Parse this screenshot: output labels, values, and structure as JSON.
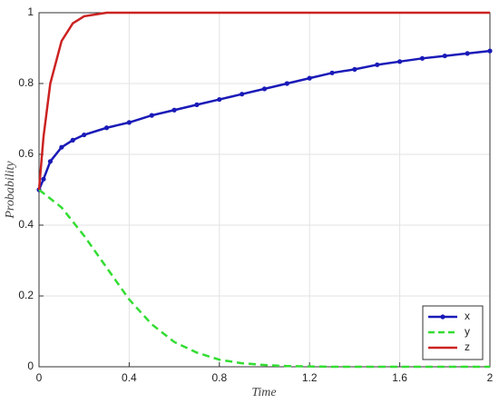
{
  "chart_data": {
    "type": "line",
    "xlabel": "Time",
    "ylabel": "Probability",
    "x": [
      0,
      0.02,
      0.05,
      0.1,
      0.15,
      0.2,
      0.3,
      0.4,
      0.5,
      0.6,
      0.7,
      0.8,
      0.9,
      1.0,
      1.1,
      1.2,
      1.3,
      1.4,
      1.5,
      1.6,
      1.7,
      1.8,
      1.9,
      2.0
    ],
    "series": [
      {
        "name": "x",
        "color": "#1a1ab8",
        "style": "solid",
        "marker": true,
        "values": [
          0.5,
          0.53,
          0.58,
          0.62,
          0.64,
          0.655,
          0.675,
          0.69,
          0.71,
          0.725,
          0.74,
          0.755,
          0.77,
          0.785,
          0.8,
          0.815,
          0.83,
          0.84,
          0.853,
          0.862,
          0.871,
          0.878,
          0.885,
          0.892
        ]
      },
      {
        "name": "y",
        "color": "#33dd33",
        "style": "dashed",
        "marker": false,
        "values": [
          0.5,
          0.49,
          0.475,
          0.45,
          0.41,
          0.37,
          0.28,
          0.19,
          0.12,
          0.07,
          0.04,
          0.02,
          0.01,
          0.005,
          0.002,
          0.001,
          0,
          0,
          0,
          0,
          0,
          0,
          0,
          0
        ]
      },
      {
        "name": "z",
        "color": "#cc2222",
        "style": "solid",
        "marker": false,
        "values": [
          0.5,
          0.65,
          0.8,
          0.92,
          0.97,
          0.99,
          1,
          1,
          1,
          1,
          1,
          1,
          1,
          1,
          1,
          1,
          1,
          1,
          1,
          1,
          1,
          1,
          1,
          1
        ]
      }
    ],
    "xlim": [
      0,
      2
    ],
    "ylim": [
      0,
      1
    ],
    "xticks": [
      0,
      0.4,
      0.8,
      1.2,
      1.6,
      2
    ],
    "yticks": [
      0,
      0.2,
      0.4,
      0.6,
      0.8,
      1
    ],
    "grid": true,
    "legend": "lower right"
  }
}
